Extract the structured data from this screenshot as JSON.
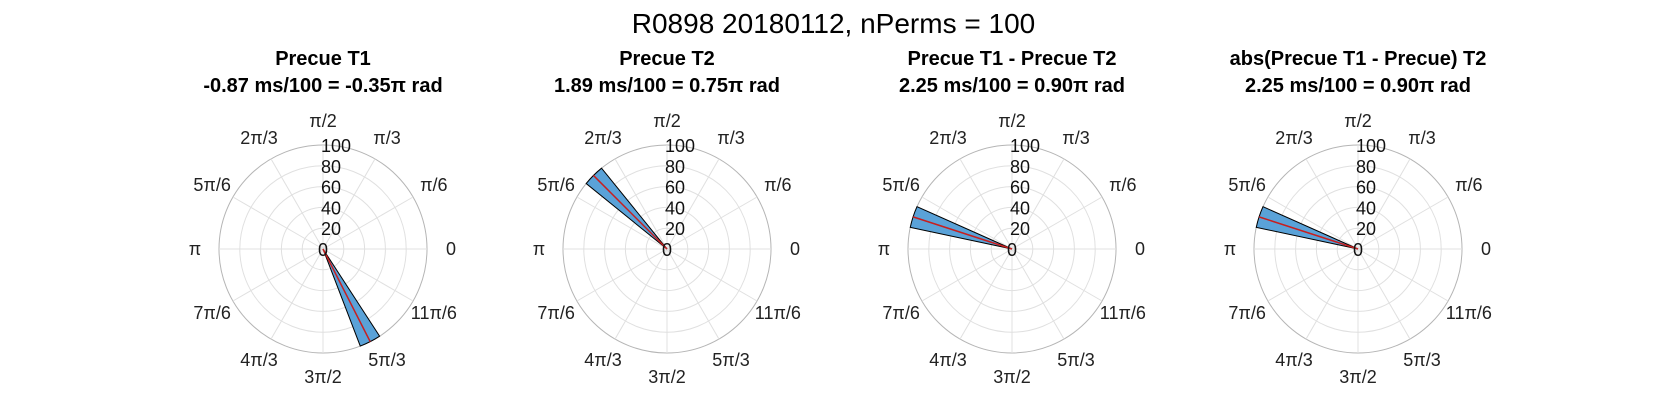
{
  "figure": {
    "title": "R0898 20180112, nPerms = 100"
  },
  "theme": {
    "bar_fill": "#5aa2d8",
    "bar_edge": "#000000",
    "mean_line": "#c81e1e",
    "grid": "#e0e0e0",
    "outer_ring": "#b5b5b5"
  },
  "chart_data": [
    {
      "type": "polar-histogram",
      "title": "Precue T1",
      "subtitle": "-0.87 ms/100 = -0.35π rad",
      "r_ticks": [
        "0",
        "20",
        "40",
        "60",
        "80",
        "100"
      ],
      "rlim": [
        0,
        100
      ],
      "theta_tick_labels": [
        "0",
        "π/6",
        "π/3",
        "π/2",
        "2π/3",
        "5π/6",
        "π",
        "7π/6",
        "4π/3",
        "3π/2",
        "5π/3",
        "11π/6"
      ],
      "bars": [
        {
          "angle_pi": -0.35,
          "count": 100
        }
      ],
      "mean_angle_pi": -0.35
    },
    {
      "type": "polar-histogram",
      "title": "Precue T2",
      "subtitle": "1.89 ms/100 = 0.75π rad",
      "r_ticks": [
        "0",
        "20",
        "40",
        "60",
        "80",
        "100"
      ],
      "rlim": [
        0,
        100
      ],
      "theta_tick_labels": [
        "0",
        "π/6",
        "π/3",
        "π/2",
        "2π/3",
        "5π/6",
        "π",
        "7π/6",
        "4π/3",
        "3π/2",
        "5π/3",
        "11π/6"
      ],
      "bars": [
        {
          "angle_pi": 0.75,
          "count": 100
        }
      ],
      "mean_angle_pi": 0.75
    },
    {
      "type": "polar-histogram",
      "title": "Precue T1 - Precue T2",
      "subtitle": "2.25 ms/100 = 0.90π rad",
      "r_ticks": [
        "0",
        "20",
        "40",
        "60",
        "80",
        "100"
      ],
      "rlim": [
        0,
        100
      ],
      "theta_tick_labels": [
        "0",
        "π/6",
        "π/3",
        "π/2",
        "2π/3",
        "5π/6",
        "π",
        "7π/6",
        "4π/3",
        "3π/2",
        "5π/3",
        "11π/6"
      ],
      "bars": [
        {
          "angle_pi": 0.9,
          "count": 100
        }
      ],
      "mean_angle_pi": 0.9
    },
    {
      "type": "polar-histogram",
      "title": "abs(Precue T1 - Precue) T2",
      "subtitle": "2.25 ms/100 = 0.90π rad",
      "r_ticks": [
        "0",
        "20",
        "40",
        "60",
        "80",
        "100"
      ],
      "rlim": [
        0,
        100
      ],
      "theta_tick_labels": [
        "0",
        "π/6",
        "π/3",
        "π/2",
        "2π/3",
        "5π/6",
        "π",
        "7π/6",
        "4π/3",
        "3π/2",
        "5π/3",
        "11π/6"
      ],
      "bars": [
        {
          "angle_pi": 0.9,
          "count": 100
        }
      ],
      "mean_angle_pi": 0.9
    }
  ]
}
